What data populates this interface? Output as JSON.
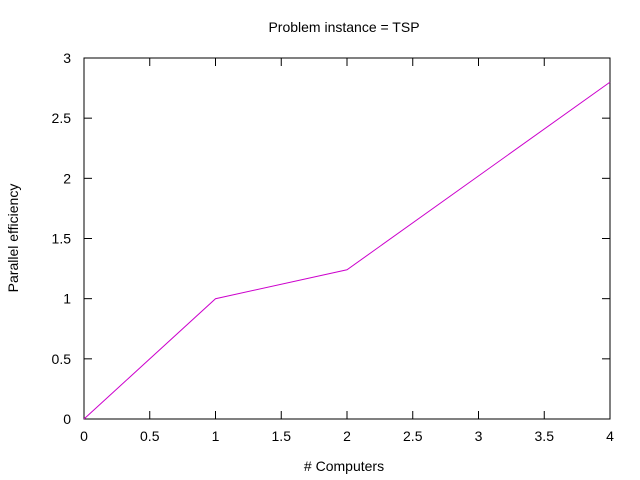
{
  "chart_data": {
    "type": "line",
    "title": "Problem instance = TSP",
    "xlabel": "# Computers",
    "ylabel": "Parallel efficiency",
    "xlim": [
      0,
      4
    ],
    "ylim": [
      0,
      3
    ],
    "xticks": [
      0,
      0.5,
      1,
      1.5,
      2,
      2.5,
      3,
      3.5,
      4
    ],
    "yticks": [
      0,
      0.5,
      1,
      1.5,
      2,
      2.5,
      3
    ],
    "xtick_labels": [
      "0",
      "0.5",
      "1",
      "1.5",
      "2",
      "2.5",
      "3",
      "3.5",
      "4"
    ],
    "ytick_labels": [
      "0",
      "0.5",
      "1",
      "1.5",
      "2",
      "2.5",
      "3"
    ],
    "grid": false,
    "series": [
      {
        "color": "#cc00cc",
        "x": [
          0,
          1,
          2,
          4
        ],
        "y": [
          0,
          1.0,
          1.24,
          2.8
        ]
      }
    ]
  }
}
